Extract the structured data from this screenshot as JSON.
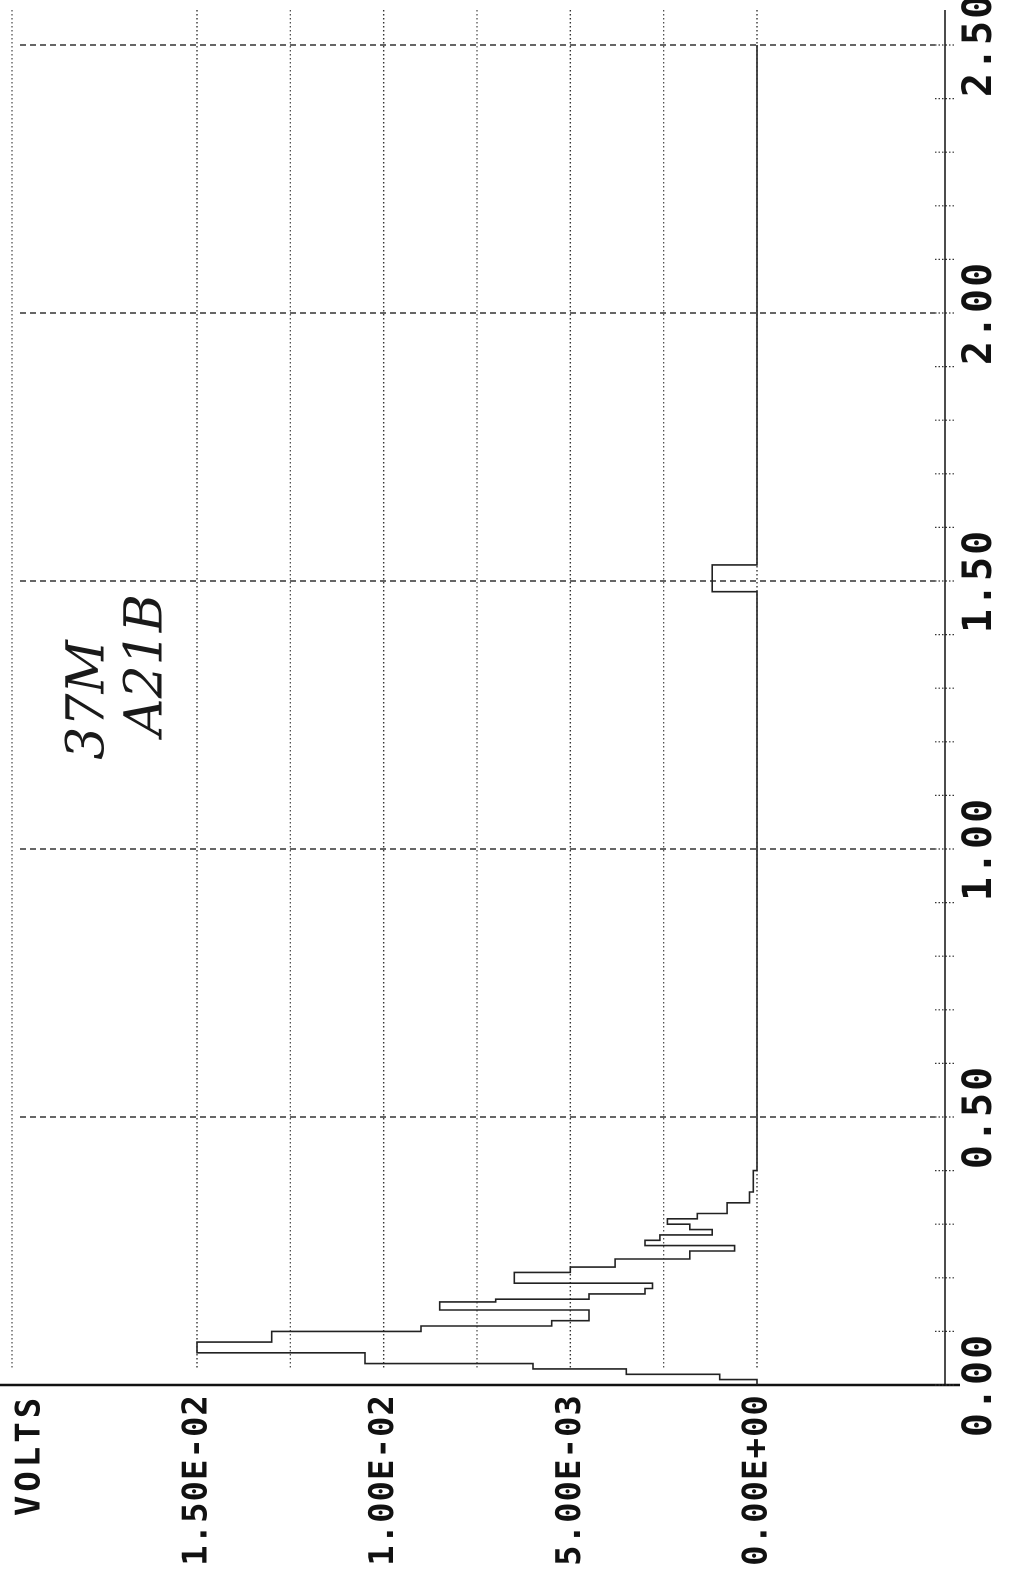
{
  "chart_data": {
    "type": "line",
    "orientation": "rotated-90",
    "title": "",
    "ylabel": "VOLTS",
    "xlabel": "",
    "xlim": [
      0,
      2.5
    ],
    "ylim": [
      0,
      0.015
    ],
    "x_ticks": [
      "0.00",
      "0.50",
      "1.00",
      "1.50",
      "2.00",
      "2.50"
    ],
    "y_ticks": [
      "0.00E+00",
      "5.00E-03",
      "1.00E-02",
      "1.50E-02"
    ],
    "grid": true,
    "series": [
      {
        "color": "#222222",
        "x": [
          0.0,
          0.01,
          0.02,
          0.03,
          0.04,
          0.06,
          0.08,
          0.1,
          0.11,
          0.12,
          0.14,
          0.155,
          0.16,
          0.17,
          0.18,
          0.19,
          0.21,
          0.22,
          0.235,
          0.25,
          0.26,
          0.27,
          0.28,
          0.29,
          0.3,
          0.31,
          0.32,
          0.34,
          0.36,
          0.4,
          0.5,
          0.7,
          1.0,
          1.3,
          1.48,
          1.49,
          1.53,
          1.54,
          1.7,
          2.0,
          2.5
        ],
        "y": [
          0.0,
          0.0,
          0.001,
          0.0035,
          0.006,
          0.0105,
          0.015,
          0.013,
          0.009,
          0.0055,
          0.0045,
          0.0085,
          0.007,
          0.0045,
          0.003,
          0.0028,
          0.0065,
          0.005,
          0.0038,
          0.0018,
          0.0006,
          0.003,
          0.0026,
          0.0012,
          0.0018,
          0.0024,
          0.0016,
          0.0008,
          0.0002,
          0.0001,
          0.0,
          0.0,
          0.0,
          0.0,
          0.0,
          0.0012,
          0.0012,
          0.0,
          0.0,
          0.0,
          0.0
        ]
      }
    ]
  },
  "annotations": {
    "handwritten_line1": "37M",
    "handwritten_line2": "A21B"
  }
}
